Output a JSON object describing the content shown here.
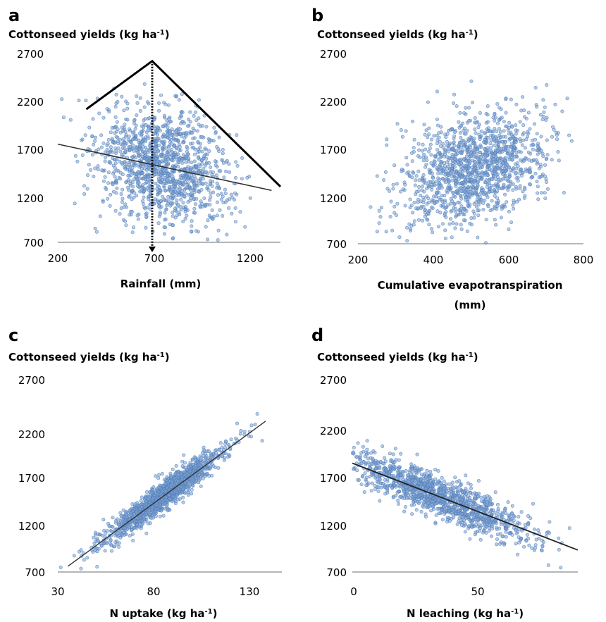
{
  "figure": {
    "panels": [
      {
        "id": "a",
        "letter": "a",
        "ylabel_main": "Cottonseed yields (kg ha",
        "ylabel_sup": "-1",
        "ylabel_close": ")",
        "xlabel_lines": [
          "Rainfall (mm)"
        ],
        "y_ticks": [
          "2700",
          "2200",
          "1700",
          "1200",
          "700"
        ],
        "x_ticks": [
          "200",
          "700",
          "1200"
        ]
      },
      {
        "id": "b",
        "letter": "b",
        "ylabel_main": "Cottonseed yields (kg ha",
        "ylabel_sup": "-1",
        "ylabel_close": ")",
        "xlabel_lines": [
          "Cumulative evapotranspiration",
          "(mm)"
        ],
        "y_ticks": [
          "2700",
          "2200",
          "1700",
          "1200",
          "700"
        ],
        "x_ticks": [
          "200",
          "400",
          "600",
          "800"
        ]
      },
      {
        "id": "c",
        "letter": "c",
        "ylabel_main": "Cottonseed yields (kg ha",
        "ylabel_sup": "-1",
        "ylabel_close": ")",
        "xlabel_main": "N uptake (kg ha",
        "xlabel_sup": "-1",
        "xlabel_close": ")",
        "y_ticks": [
          "2700",
          "2200",
          "1700",
          "1200",
          "700"
        ],
        "x_ticks": [
          "30",
          "80",
          "130"
        ]
      },
      {
        "id": "d",
        "letter": "d",
        "ylabel_main": "Cottonseed yields (kg ha",
        "ylabel_sup": "-1",
        "ylabel_close": ")",
        "xlabel_main": "N leaching (kg ha",
        "xlabel_sup": "-1",
        "xlabel_close": ")",
        "y_ticks": [
          "2700",
          "2200",
          "1700",
          "1200",
          "700"
        ],
        "x_ticks": [
          "0",
          "50"
        ]
      }
    ]
  },
  "chart_data": [
    {
      "panel": "a",
      "type": "scatter",
      "xlabel": "Rainfall (mm)",
      "ylabel": "Cottonseed yields (kg ha-1)",
      "xlim": [
        200,
        1450
      ],
      "ylim": [
        700,
        2700
      ],
      "x_ticks": [
        200,
        700,
        1200
      ],
      "y_ticks": [
        700,
        1200,
        1700,
        2200,
        2700
      ],
      "marker_color": "#4d7bb8",
      "point_cloud": {
        "n_points": 1300,
        "x_mean": 790,
        "x_sd": 190,
        "y_mean": 1520,
        "y_sd": 310,
        "trend": {
          "slope": -0.42,
          "intercept": 1845
        }
      },
      "regression_line": {
        "x": [
          200,
          1400
        ],
        "y": [
          1740,
          1250
        ],
        "color": "#333333"
      },
      "boundary_line": {
        "x": [
          360,
          730,
          1450
        ],
        "y": [
          2110,
          2620,
          1290
        ],
        "color": "#000000"
      },
      "optimum_marker": {
        "x": 730,
        "y_top": 2620,
        "y_bottom": 700,
        "style": "dotted-arrow"
      }
    },
    {
      "panel": "b",
      "type": "scatter",
      "xlabel": "Cumulative evapotranspiration (mm)",
      "ylabel": "Cottonseed yields (kg ha-1)",
      "xlim": [
        200,
        800
      ],
      "ylim": [
        700,
        2700
      ],
      "x_ticks": [
        200,
        400,
        600,
        800
      ],
      "y_ticks": [
        700,
        1200,
        1700,
        2200,
        2700
      ],
      "marker_color": "#4d7bb8",
      "point_cloud": {
        "n_points": 1300,
        "x_mean": 510,
        "x_sd": 95,
        "y_mean": 1490,
        "y_sd": 300,
        "trend": {
          "slope": 0.95,
          "intercept": 1005
        }
      }
    },
    {
      "panel": "c",
      "type": "scatter",
      "xlabel": "N uptake (kg ha-1)",
      "ylabel": "Cottonseed yields (kg ha-1)",
      "xlim": [
        30,
        140
      ],
      "ylim": [
        700,
        2700
      ],
      "x_ticks": [
        30,
        80,
        130
      ],
      "y_ticks": [
        700,
        1200,
        1700,
        2200,
        2700
      ],
      "marker_color": "#4d7bb8",
      "point_cloud": {
        "n_points": 1300,
        "x_mean": 82,
        "x_sd": 15,
        "y_mean": 1500,
        "y_sd": 120,
        "trend": {
          "slope": 15.8,
          "intercept": 205
        }
      },
      "regression_line": {
        "x": [
          35,
          132
        ],
        "y": [
          760,
          2280
        ],
        "color": "#333333"
      }
    },
    {
      "panel": "d",
      "type": "scatter",
      "xlabel": "N leaching (kg ha-1)",
      "ylabel": "Cottonseed yields (kg ha-1)",
      "xlim": [
        0,
        90
      ],
      "ylim": [
        700,
        2700
      ],
      "x_ticks": [
        0,
        50
      ],
      "y_ticks": [
        700,
        1200,
        1700,
        2200,
        2700
      ],
      "marker_color": "#4d7bb8",
      "point_cloud": {
        "n_points": 1300,
        "x_mean": 34,
        "x_sd": 18,
        "y_mean": 1500,
        "y_sd": 220,
        "trend": {
          "slope": -10.5,
          "intercept": 1860
        }
      },
      "regression_line": {
        "x": [
          0,
          90
        ],
        "y": [
          1840,
          930
        ],
        "color": "#222222"
      }
    }
  ]
}
